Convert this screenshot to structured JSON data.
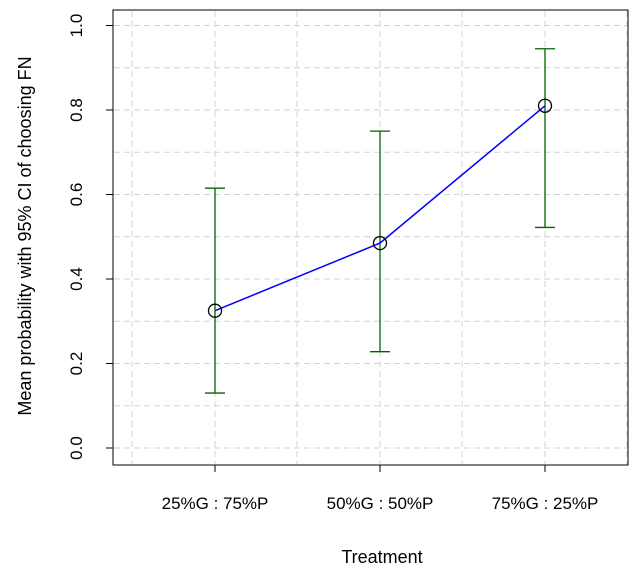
{
  "chart_data": {
    "type": "line",
    "title": "",
    "xlabel": "Treatment",
    "ylabel": "Mean probability with 95% CI of choosing FN",
    "categories": [
      "25%G : 75%P",
      "50%G : 50%P",
      "75%G : 25%P"
    ],
    "series": [
      {
        "values": [
          0.325,
          0.485,
          0.81
        ],
        "ci_lower": [
          0.13,
          0.228,
          0.522
        ],
        "ci_upper": [
          0.615,
          0.75,
          0.945
        ]
      }
    ],
    "ylim": [
      0,
      1
    ],
    "yticks": [
      0.0,
      0.2,
      0.4,
      0.6,
      0.8,
      1.0
    ],
    "ytick_labels": [
      "0.0",
      "0.2",
      "0.4",
      "0.6",
      "0.8",
      "1.0"
    ],
    "grid": true,
    "legend": "none",
    "colors": {
      "line": "#0000ff",
      "error_bars": "#006400",
      "points": "#000000",
      "grid": "#d3d3d3"
    }
  }
}
